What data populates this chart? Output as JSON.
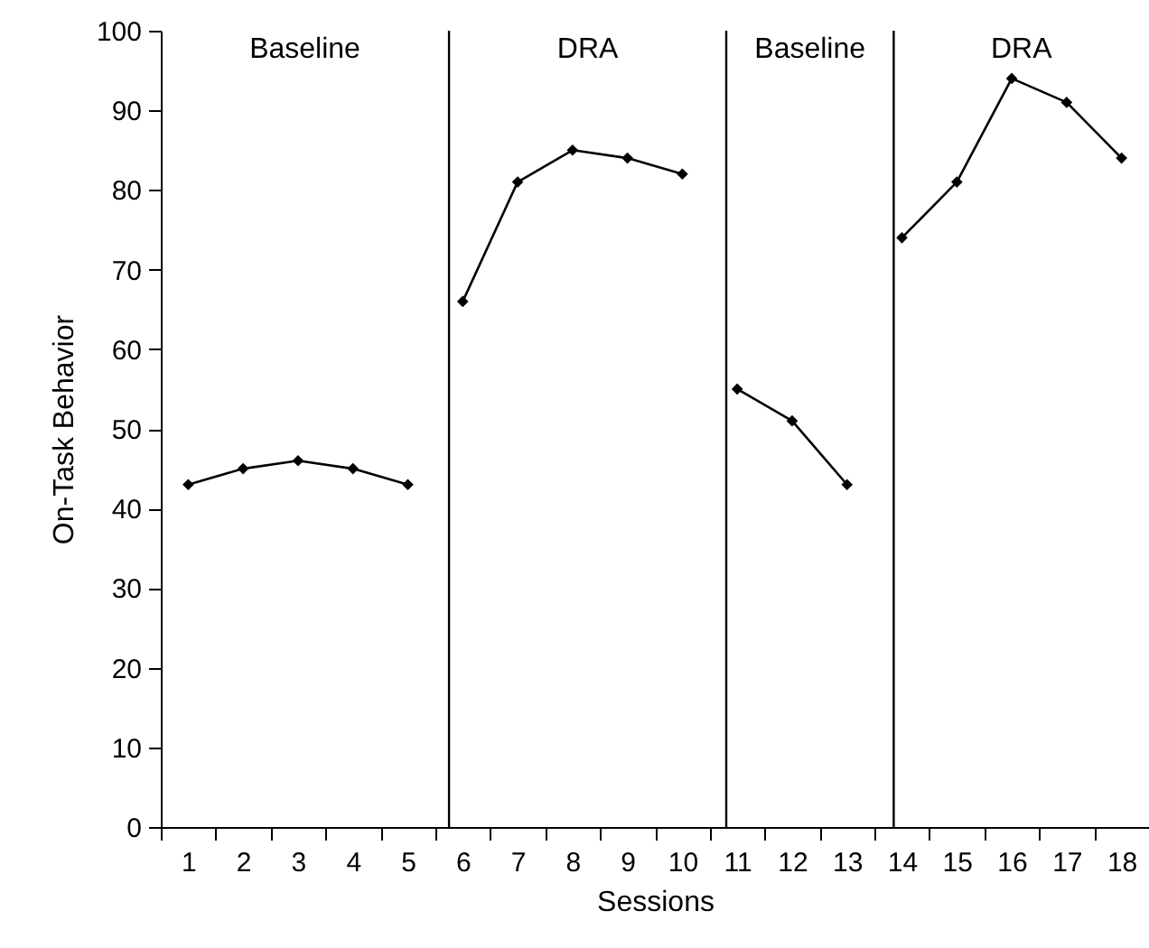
{
  "chart_data": {
    "type": "line",
    "xlabel": "Sessions",
    "ylabel": "On-Task Behavior",
    "marker": "diamond",
    "line_style": "solid",
    "xlim": [
      0.5,
      18.5
    ],
    "xticks": [
      {
        "value": 0.5,
        "label": null
      },
      1,
      {
        "value": 1.5,
        "label": null
      },
      2,
      {
        "value": 2.5,
        "label": null
      },
      3,
      {
        "value": 3.5,
        "label": null
      },
      4,
      {
        "value": 4.5,
        "label": null
      },
      5,
      {
        "value": 5.5,
        "label": null
      },
      6,
      {
        "value": 6.5,
        "label": null
      },
      7,
      {
        "value": 7.5,
        "label": null
      },
      8,
      {
        "value": 8.5,
        "label": null
      },
      9,
      {
        "value": 9.5,
        "label": null
      },
      10,
      {
        "value": 10.5,
        "label": null
      },
      11,
      {
        "value": 11.5,
        "label": null
      },
      12,
      {
        "value": 12.5,
        "label": null
      },
      13,
      {
        "value": 13.5,
        "label": null
      },
      14,
      {
        "value": 14.5,
        "label": null
      },
      15,
      {
        "value": 15.5,
        "label": null
      },
      16,
      {
        "value": 16.5,
        "label": null
      },
      17,
      {
        "value": 17.5,
        "label": null
      },
      18
    ],
    "ylim": [
      0,
      100
    ],
    "yticks": [
      0,
      10,
      20,
      30,
      40,
      50,
      60,
      70,
      80,
      90,
      100
    ],
    "series": [
      {
        "color": "#000000",
        "x": [
          1,
          2,
          3,
          4,
          5
        ],
        "values": [
          43,
          45,
          46,
          45,
          43
        ]
      },
      {
        "color": "#000000",
        "x": [
          6,
          7,
          8,
          9,
          10
        ],
        "values": [
          66,
          81,
          85,
          84,
          82
        ]
      },
      {
        "color": "#000000",
        "x": [
          11,
          12,
          13
        ],
        "values": [
          55,
          51,
          43
        ]
      },
      {
        "color": "#000000",
        "x": [
          14,
          15,
          16,
          17,
          18
        ],
        "values": [
          74,
          81,
          94,
          91,
          84
        ]
      }
    ],
    "ref_lines": [
      {
        "axis": "x",
        "value": 5.75,
        "color": "#000000"
      },
      {
        "axis": "x",
        "value": 10.8,
        "color": "#000000"
      },
      {
        "axis": "x",
        "value": 13.85,
        "color": "#000000"
      }
    ],
    "annotations": [
      "Baseline",
      "DRA",
      "Baseline",
      "DRA"
    ]
  }
}
